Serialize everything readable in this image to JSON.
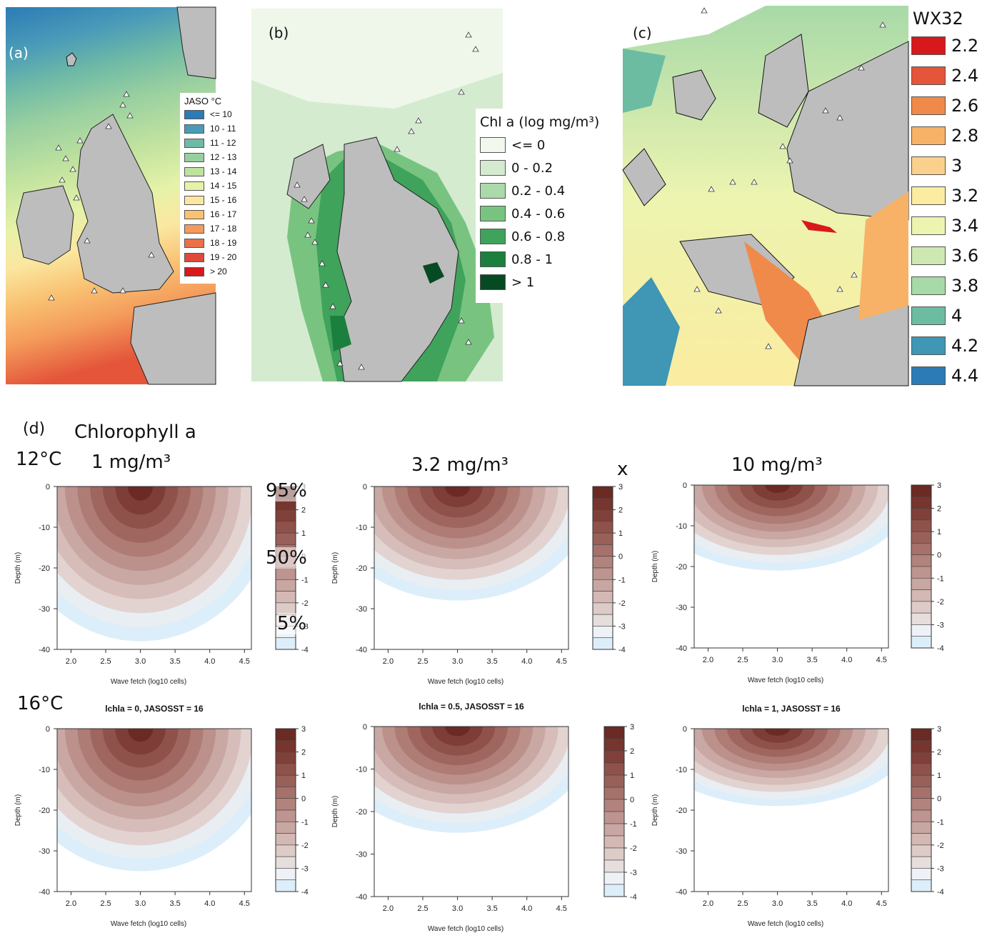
{
  "panel_a": {
    "tag": "(a)",
    "legend_title": "JASO °C",
    "legend": [
      {
        "label": "<= 10",
        "color": "#2c7bb6"
      },
      {
        "label": "10 - 11",
        "color": "#4a9bb8"
      },
      {
        "label": "11 - 12",
        "color": "#6fbaa6"
      },
      {
        "label": "12 - 13",
        "color": "#98cfa0"
      },
      {
        "label": "13 - 14",
        "color": "#bfe29f"
      },
      {
        "label": "14 - 15",
        "color": "#e6f2a8"
      },
      {
        "label": "15 - 16",
        "color": "#fbe7a0"
      },
      {
        "label": "16 - 17",
        "color": "#f9c272"
      },
      {
        "label": "17 - 18",
        "color": "#f49b5b"
      },
      {
        "label": "18 - 19",
        "color": "#ea7148"
      },
      {
        "label": "19 - 20",
        "color": "#de4b3a"
      },
      {
        "label": "> 20",
        "color": "#d7191c"
      }
    ]
  },
  "panel_b": {
    "tag": "(b)",
    "legend_title": "Chl a (log mg/m³)",
    "legend": [
      {
        "label": "<= 0",
        "color": "#f2f8ee"
      },
      {
        "label": "0 - 0.2",
        "color": "#d4ebd0"
      },
      {
        "label": "0.2 - 0.4",
        "color": "#aad9aa"
      },
      {
        "label": "0.4 - 0.6",
        "color": "#79c381"
      },
      {
        "label": "0.6 - 0.8",
        "color": "#3fa35b"
      },
      {
        "label": "0.8 - 1",
        "color": "#1b7f3e"
      },
      {
        "label": "> 1",
        "color": "#064a23"
      }
    ]
  },
  "panel_c": {
    "tag": "(c)",
    "legend_title": "WX32",
    "legend": [
      {
        "label": "2.2",
        "color": "#d7191c"
      },
      {
        "label": "2.4",
        "color": "#e4553a"
      },
      {
        "label": "2.6",
        "color": "#f08a4b"
      },
      {
        "label": "2.8",
        "color": "#f7b267"
      },
      {
        "label": "3",
        "color": "#fad08c"
      },
      {
        "label": "3.2",
        "color": "#fbeca0"
      },
      {
        "label": "3.4",
        "color": "#ecf4b0"
      },
      {
        "label": "3.6",
        "color": "#cde8b1"
      },
      {
        "label": "3.8",
        "color": "#a8d9a8"
      },
      {
        "label": "4",
        "color": "#6cbca2"
      },
      {
        "label": "4.2",
        "color": "#3f96b5"
      },
      {
        "label": "4.4",
        "color": "#2c7bb6"
      }
    ]
  },
  "panel_d": {
    "tag": "(d)",
    "title": "Chlorophyll a",
    "row_labels": [
      "12°C",
      "16°C"
    ],
    "col_labels": [
      "1 mg/m³",
      "3.2 mg/m³",
      "10 mg/m³"
    ],
    "cross_mark": "x",
    "pct_labels": [
      "95%",
      "50%",
      "5%"
    ],
    "plot_titles_row2": [
      "lchla = 0, JASOSST = 16",
      "lchla = 0.5, JASOSST = 16",
      "lchla = 1, JASOSST = 16"
    ],
    "xlabel": "Wave fetch (log10 cells)",
    "ylabel": "Depth (m)",
    "xticks": [
      "2.0",
      "2.5",
      "3.0",
      "3.5",
      "4.0",
      "4.5"
    ],
    "yticks": [
      "0",
      "-10",
      "-20",
      "-30",
      "-40"
    ],
    "cbar_ticks": [
      "3",
      "2",
      "1",
      "0",
      "-1",
      "-2",
      "-3",
      "-4"
    ]
  },
  "chart_data": [
    {
      "type": "heatmap",
      "xlabel": "Wave fetch (log10 cells)",
      "ylabel": "Depth (m)",
      "xlim": [
        1.8,
        4.6
      ],
      "ylim": [
        -40,
        0
      ],
      "zlim": [
        -4,
        3
      ],
      "peak_x": 3.0,
      "extent_depth": -38
    },
    {
      "type": "heatmap",
      "xlabel": "Wave fetch (log10 cells)",
      "ylabel": "Depth (m)",
      "xlim": [
        1.8,
        4.6
      ],
      "ylim": [
        -40,
        0
      ],
      "zlim": [
        -4,
        3
      ],
      "peak_x": 3.0,
      "extent_depth": -28
    },
    {
      "type": "heatmap",
      "xlabel": "Wave fetch (log10 cells)",
      "ylabel": "Depth (m)",
      "xlim": [
        1.8,
        4.6
      ],
      "ylim": [
        -40,
        0
      ],
      "zlim": [
        -4,
        3
      ],
      "peak_x": 3.0,
      "extent_depth": -21
    },
    {
      "type": "heatmap",
      "title": "lchla = 0, JASOSST = 16",
      "xlabel": "Wave fetch (log10 cells)",
      "ylabel": "Depth (m)",
      "xlim": [
        1.8,
        4.6
      ],
      "ylim": [
        -40,
        0
      ],
      "zlim": [
        -4,
        3
      ],
      "peak_x": 3.0,
      "extent_depth": -35
    },
    {
      "type": "heatmap",
      "title": "lchla = 0.5, JASOSST = 16",
      "xlabel": "Wave fetch (log10 cells)",
      "ylabel": "Depth (m)",
      "xlim": [
        1.8,
        4.6
      ],
      "ylim": [
        -40,
        0
      ],
      "zlim": [
        -4,
        3
      ],
      "peak_x": 3.0,
      "extent_depth": -25
    },
    {
      "type": "heatmap",
      "title": "lchla = 1, JASOSST = 16",
      "xlabel": "Wave fetch (log10 cells)",
      "ylabel": "Depth (m)",
      "xlim": [
        1.8,
        4.6
      ],
      "ylim": [
        -40,
        0
      ],
      "zlim": [
        -4,
        3
      ],
      "peak_x": 3.0,
      "extent_depth": -19
    }
  ]
}
